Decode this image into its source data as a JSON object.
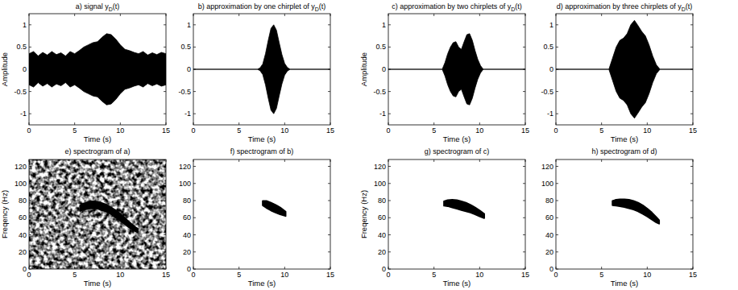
{
  "chart_data": [
    {
      "type": "envelope",
      "title": "a) signal yD(t)",
      "xlabel": "Time (s)",
      "ylabel": "Amplitude",
      "x": [
        0,
        0.5,
        1,
        1.5,
        2,
        2.5,
        3,
        3.5,
        4,
        4.5,
        5,
        5.5,
        6,
        6.5,
        7,
        7.5,
        8,
        8.5,
        9,
        9.5,
        10,
        10.5,
        11,
        11.5,
        12,
        12.5,
        13,
        13.5,
        14,
        14.5,
        15
      ],
      "values": [
        0.35,
        0.4,
        0.3,
        0.38,
        0.32,
        0.4,
        0.33,
        0.37,
        0.3,
        0.4,
        0.35,
        0.42,
        0.5,
        0.55,
        0.6,
        0.62,
        0.72,
        0.8,
        0.78,
        0.68,
        0.55,
        0.45,
        0.42,
        0.38,
        0.35,
        0.4,
        0.32,
        0.37,
        0.33,
        0.38,
        0.35
      ],
      "xlim": [
        0,
        15
      ],
      "ylim": [
        -1.25,
        1.25
      ],
      "xticks": [
        0,
        5,
        10,
        15
      ],
      "yticks": [
        -1,
        -0.5,
        0,
        0.5,
        1
      ],
      "color": "#000000"
    },
    {
      "type": "envelope",
      "title": "b) approximation by one chirplet of yD(t)",
      "xlabel": "Time (s)",
      "x": [
        0,
        7,
        7.3,
        7.6,
        7.9,
        8.2,
        8.5,
        8.8,
        9.1,
        9.4,
        9.7,
        10,
        10.3,
        10.6,
        15
      ],
      "values": [
        0,
        0,
        0.03,
        0.12,
        0.35,
        0.65,
        0.92,
        1.0,
        0.88,
        0.6,
        0.33,
        0.13,
        0.04,
        0,
        0
      ],
      "xlim": [
        0,
        15
      ],
      "ylim": [
        -1.25,
        1.25
      ],
      "xticks": [
        0,
        5,
        10,
        15
      ],
      "yticks": [
        -1,
        -0.5,
        0,
        0.5,
        1
      ],
      "color": "#000000"
    },
    {
      "type": "envelope",
      "title": "c) approximation by two chirplets of yD(t)",
      "xlabel": "Time (s)",
      "ylabel": "Amplitude",
      "x": [
        0,
        5.9,
        6.2,
        6.5,
        6.8,
        7.1,
        7.4,
        7.7,
        8,
        8.3,
        8.6,
        8.9,
        9.2,
        9.5,
        9.8,
        10.1,
        10.4,
        15
      ],
      "values": [
        0,
        0,
        0.15,
        0.35,
        0.5,
        0.6,
        0.62,
        0.5,
        0.45,
        0.62,
        0.78,
        0.8,
        0.65,
        0.42,
        0.22,
        0.08,
        0,
        0
      ],
      "xlim": [
        0,
        15
      ],
      "ylim": [
        -1.25,
        1.25
      ],
      "xticks": [
        0,
        5,
        10,
        15
      ],
      "yticks": [
        -1,
        -0.5,
        0,
        0.5,
        1
      ],
      "color": "#000000"
    },
    {
      "type": "envelope",
      "title": "d) approximation by three chirplets of yD(t)",
      "xlabel": "Time (s)",
      "x": [
        0,
        5.8,
        6.2,
        6.6,
        7,
        7.4,
        7.8,
        8.2,
        8.6,
        9,
        9.4,
        9.8,
        10.2,
        10.6,
        11,
        11.4,
        15
      ],
      "values": [
        0,
        0,
        0.25,
        0.5,
        0.65,
        0.7,
        0.8,
        1.0,
        1.1,
        0.98,
        0.85,
        0.75,
        0.55,
        0.3,
        0.1,
        0,
        0
      ],
      "xlim": [
        0,
        15
      ],
      "ylim": [
        -1.25,
        1.25
      ],
      "xticks": [
        0,
        5,
        10,
        15
      ],
      "yticks": [
        -1,
        -0.5,
        0,
        0.5,
        1
      ],
      "color": "#000000"
    },
    {
      "type": "noisy_spectrogram",
      "title": "e) spectrogram of a)",
      "xlabel": "Time (s)",
      "ylabel": "Freqency (Hz)",
      "x": [
        5.6,
        6,
        6.5,
        7,
        7.5,
        8,
        8.5,
        9,
        9.5,
        10,
        10.5,
        11,
        11.5,
        11.9
      ],
      "values": [
        71,
        73,
        74.5,
        75,
        74.5,
        73,
        71,
        68,
        64.5,
        60.5,
        56,
        51.5,
        47.5,
        45
      ],
      "spread": [
        3,
        3.5,
        4,
        4,
        4,
        4,
        4,
        4,
        4,
        4,
        3.5,
        3,
        2.5,
        2
      ],
      "xlim": [
        0,
        15
      ],
      "ylim": [
        0,
        128
      ],
      "xticks": [
        0,
        5,
        10,
        15
      ],
      "yticks": [
        0,
        20,
        40,
        60,
        80,
        100,
        120
      ],
      "color": "#000000"
    },
    {
      "type": "spectrogram",
      "title": "f) spectrogram of b)",
      "xlabel": "Time (s)",
      "x": [
        7.6,
        8,
        8.5,
        9,
        9.5,
        10.1
      ],
      "values": [
        77,
        75.5,
        73,
        70.5,
        68,
        64.5
      ],
      "spread": [
        2.5,
        4,
        4.5,
        4.5,
        4,
        2.5
      ],
      "xlim": [
        0,
        15
      ],
      "ylim": [
        0,
        128
      ],
      "xticks": [
        0,
        5,
        10,
        15
      ],
      "yticks": [
        0,
        20,
        40,
        60,
        80,
        100,
        120
      ],
      "color": "#000000"
    },
    {
      "type": "spectrogram",
      "title": "g) spectrogram of c)",
      "xlabel": "Time (s)",
      "ylabel": "Freqency (Hz)",
      "x": [
        6.1,
        6.5,
        7,
        7.5,
        8,
        8.5,
        9,
        9.5,
        10,
        10.5
      ],
      "values": [
        76.5,
        77,
        76.5,
        75.5,
        74,
        72.5,
        70.5,
        68,
        65,
        62
      ],
      "spread": [
        2.5,
        3.5,
        4.5,
        5,
        5,
        5,
        4.5,
        4,
        3.5,
        2.5
      ],
      "xlim": [
        0,
        15
      ],
      "ylim": [
        0,
        128
      ],
      "xticks": [
        0,
        5,
        10,
        15
      ],
      "yticks": [
        0,
        20,
        40,
        60,
        80,
        100,
        120
      ],
      "color": "#000000"
    },
    {
      "type": "spectrogram",
      "title": "h) spectrogram of d)",
      "xlabel": "Time (s)",
      "x": [
        6.2,
        6.6,
        7,
        7.5,
        8,
        8.5,
        9,
        9.5,
        10,
        10.5,
        11,
        11.3
      ],
      "values": [
        77,
        77.5,
        77.5,
        77,
        76,
        74.5,
        72.5,
        69.5,
        66,
        62,
        57.5,
        55
      ],
      "spread": [
        2.5,
        3.5,
        4,
        4.5,
        5,
        5,
        5,
        5,
        4.5,
        4,
        3,
        2
      ],
      "xlim": [
        0,
        15
      ],
      "ylim": [
        0,
        128
      ],
      "xticks": [
        0,
        5,
        10,
        15
      ],
      "yticks": [
        0,
        20,
        40,
        60,
        80,
        100,
        120
      ],
      "color": "#000000"
    }
  ]
}
